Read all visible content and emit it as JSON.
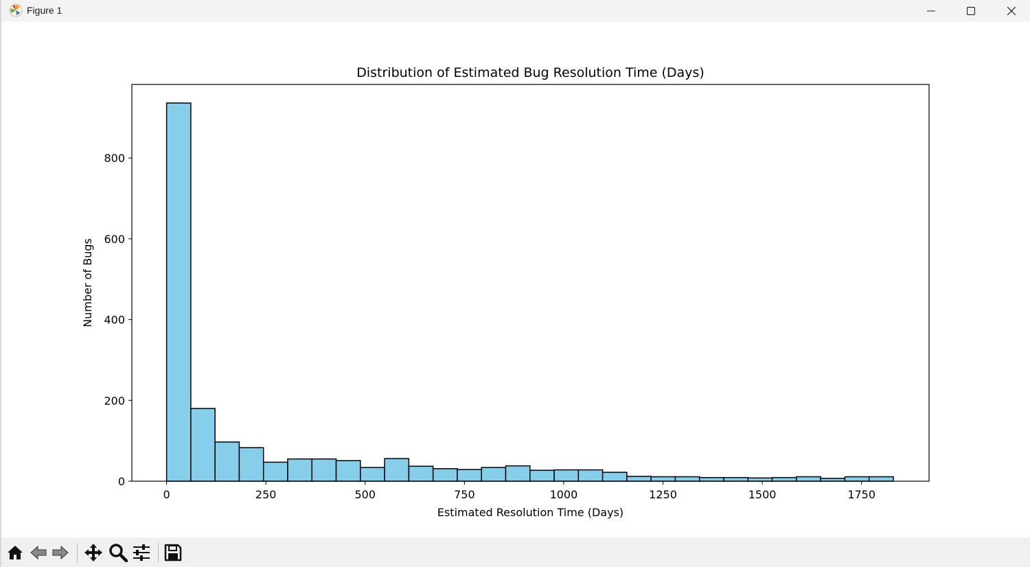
{
  "window": {
    "title": "Figure 1",
    "icon": "matplotlib-icon",
    "controls": [
      "minimize-icon",
      "maximize-icon",
      "close-icon"
    ]
  },
  "toolbar": {
    "buttons": [
      "home-icon",
      "back-icon",
      "forward-icon",
      "pan-icon",
      "zoom-icon",
      "configure-subplots-icon",
      "save-icon"
    ]
  },
  "chart_data": {
    "type": "bar",
    "title": "Distribution of Estimated Bug Resolution Time (Days)",
    "xlabel": "Estimated Resolution Time (Days)",
    "ylabel": "Number of Bugs",
    "bin_start": 0,
    "bin_width": 61,
    "values": [
      936,
      180,
      97,
      83,
      47,
      55,
      55,
      51,
      34,
      56,
      37,
      31,
      29,
      34,
      38,
      27,
      28,
      28,
      22,
      12,
      11,
      11,
      9,
      9,
      8,
      9,
      11,
      7,
      11,
      11
    ],
    "xlim": [
      -87.5,
      1920
    ],
    "ylim": [
      0,
      982
    ],
    "xticks": [
      0,
      250,
      500,
      750,
      1000,
      1250,
      1500,
      1750
    ],
    "yticks": [
      0,
      200,
      400,
      600,
      800
    ],
    "bar_color": "#87ceeb",
    "edge_color": "#000000",
    "grid": false,
    "legend": false
  }
}
